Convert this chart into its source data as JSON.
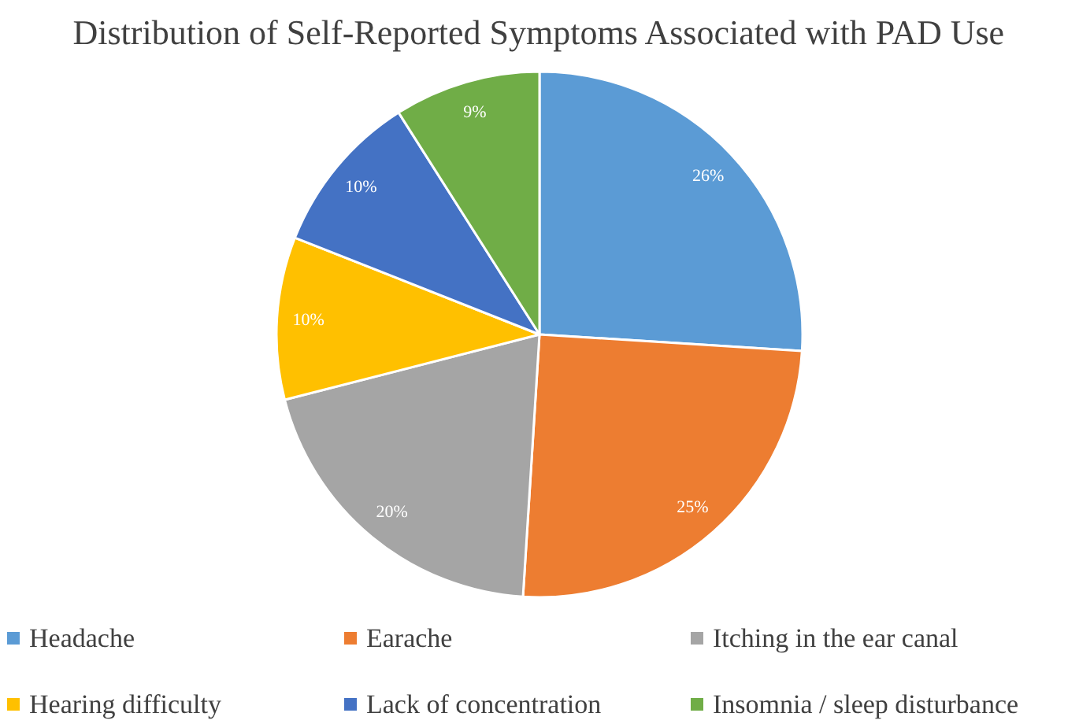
{
  "chart_data": {
    "type": "pie",
    "title": "Distribution of Self-Reported Symptoms Associated with PAD Use",
    "categories": [
      "Headache",
      "Earache",
      "Itching in the ear canal",
      "Hearing difficulty",
      "Lack of concentration",
      "Insomnia / sleep disturbance"
    ],
    "values": [
      26,
      25,
      20,
      10,
      10,
      9
    ],
    "value_labels": [
      "26%",
      "25%",
      "20%",
      "10%",
      "10%",
      "9%"
    ],
    "colors": [
      "#5b9bd5",
      "#ed7d31",
      "#a5a5a5",
      "#ffc000",
      "#4472c4",
      "#70ad47"
    ],
    "legend": "bottom"
  }
}
